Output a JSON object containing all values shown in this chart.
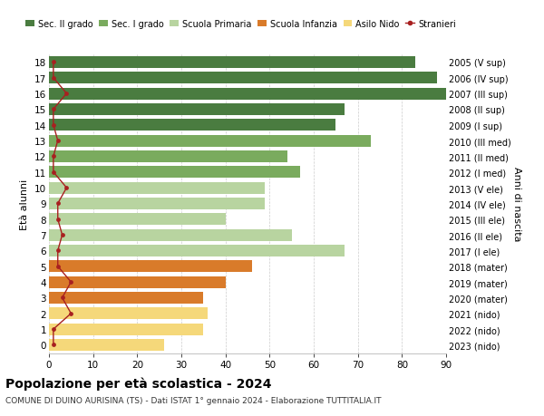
{
  "ages": [
    18,
    17,
    16,
    15,
    14,
    13,
    12,
    11,
    10,
    9,
    8,
    7,
    6,
    5,
    4,
    3,
    2,
    1,
    0
  ],
  "right_labels": [
    "2005 (V sup)",
    "2006 (IV sup)",
    "2007 (III sup)",
    "2008 (II sup)",
    "2009 (I sup)",
    "2010 (III med)",
    "2011 (II med)",
    "2012 (I med)",
    "2013 (V ele)",
    "2014 (IV ele)",
    "2015 (III ele)",
    "2016 (II ele)",
    "2017 (I ele)",
    "2018 (mater)",
    "2019 (mater)",
    "2020 (mater)",
    "2021 (nido)",
    "2022 (nido)",
    "2023 (nido)"
  ],
  "bar_values": [
    83,
    88,
    90,
    67,
    65,
    73,
    54,
    57,
    49,
    49,
    40,
    55,
    67,
    46,
    40,
    35,
    36,
    35,
    26
  ],
  "stranieri_values": [
    1,
    1,
    4,
    1,
    1,
    2,
    1,
    1,
    4,
    2,
    2,
    3,
    2,
    2,
    5,
    3,
    5,
    1,
    1
  ],
  "bar_colors": [
    "#4a7c40",
    "#4a7c40",
    "#4a7c40",
    "#4a7c40",
    "#4a7c40",
    "#7aab5e",
    "#7aab5e",
    "#7aab5e",
    "#b8d4a0",
    "#b8d4a0",
    "#b8d4a0",
    "#b8d4a0",
    "#b8d4a0",
    "#d97b2a",
    "#d97b2a",
    "#d97b2a",
    "#f5d87a",
    "#f5d87a",
    "#f5d87a"
  ],
  "legend_colors": [
    "#4a7c40",
    "#7aab5e",
    "#b8d4a0",
    "#d97b2a",
    "#f5d87a",
    "#a82020"
  ],
  "legend_labels": [
    "Sec. II grado",
    "Sec. I grado",
    "Scuola Primaria",
    "Scuola Infanzia",
    "Asilo Nido",
    "Stranieri"
  ],
  "ylabel": "Età alunni",
  "right_ylabel": "Anni di nascita",
  "title": "Popolazione per età scolastica - 2024",
  "subtitle": "COMUNE DI DUINO AURISINA (TS) - Dati ISTAT 1° gennaio 2024 - Elaborazione TUTTITALIA.IT",
  "xlim": [
    0,
    90
  ],
  "xticks": [
    0,
    10,
    20,
    30,
    40,
    50,
    60,
    70,
    80,
    90
  ],
  "background_color": "#ffffff",
  "grid_color": "#cccccc",
  "stranieri_color": "#a82020",
  "bar_height": 0.75
}
